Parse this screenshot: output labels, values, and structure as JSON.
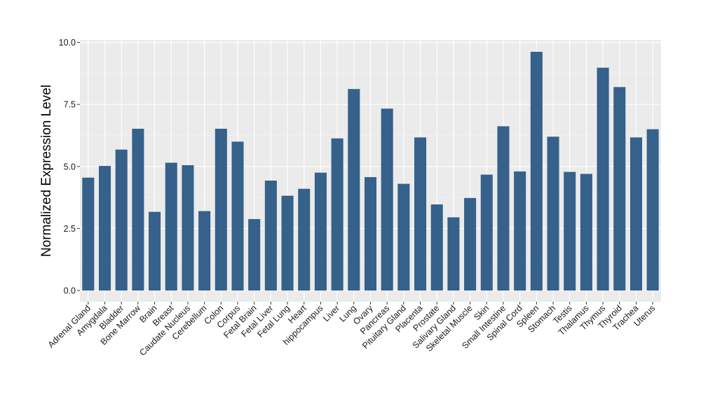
{
  "colors": {
    "bar": "#35618a",
    "panel": "#ebebeb",
    "grid_major": "#ffffff",
    "grid_minor": "#f5f5f5",
    "tick": "#333333"
  },
  "chart_data": {
    "type": "bar",
    "title": "",
    "xlabel": "",
    "ylabel": "Normalized Expression Level",
    "ylim": [
      -0.45,
      10.1
    ],
    "yticks": [
      0.0,
      2.5,
      5.0,
      7.5,
      10.0
    ],
    "ytick_labels": [
      "0.0",
      "2.5",
      "5.0",
      "7.5",
      "10.0"
    ],
    "grid": true,
    "legend": "none",
    "categories": [
      "Adrenal Gland",
      "Amygdala",
      "Bladder",
      "Bone Marrow",
      "Brain",
      "Breast",
      "Caudate Nucleus",
      "Cerebellum",
      "Colon",
      "Corpus",
      "Fetal Brain",
      "Fetal Liver",
      "Fetal Lung",
      "Heart",
      "hippocampus",
      "Liver",
      "Lung",
      "Ovary",
      "Pancreas",
      "Pituitary Gland",
      "Placenta",
      "Prostate",
      "Salivary Gland",
      "Skeletal Muscle",
      "Skin",
      "Small Intestine",
      "Spinal Cord",
      "Spleen",
      "Stomach",
      "Testis",
      "Thalamus",
      "Thymus",
      "Thyroid",
      "Trachea",
      "Uterus"
    ],
    "values": [
      4.55,
      5.02,
      5.68,
      6.52,
      3.17,
      5.15,
      5.05,
      3.2,
      6.52,
      6.0,
      2.88,
      4.43,
      3.82,
      4.1,
      4.75,
      6.13,
      8.12,
      4.57,
      7.33,
      4.3,
      6.17,
      3.47,
      2.95,
      3.73,
      4.67,
      6.62,
      4.8,
      9.62,
      6.2,
      4.78,
      4.7,
      8.98,
      8.2,
      6.17,
      6.5
    ]
  }
}
